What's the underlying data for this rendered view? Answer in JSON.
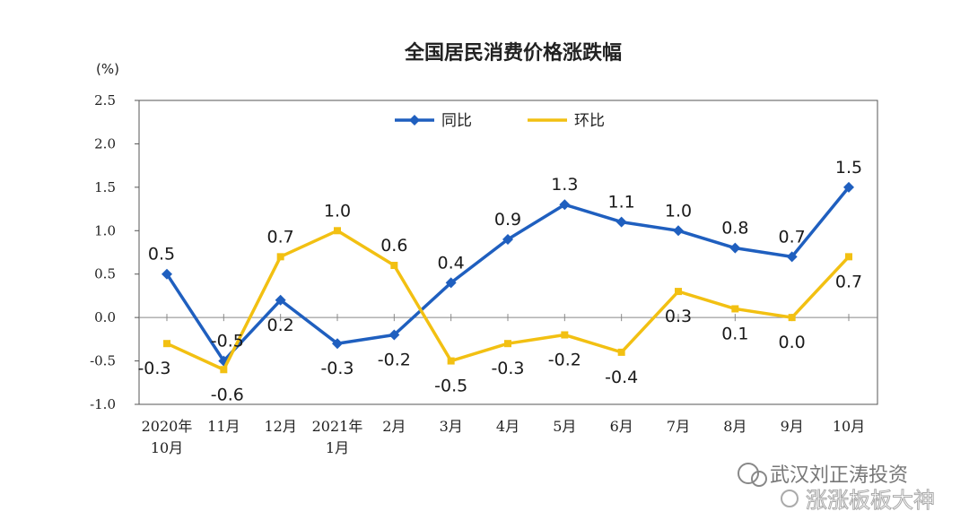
{
  "chart_data": {
    "type": "line",
    "title": "全国居民消费价格涨跌幅",
    "unit_label": "(%)",
    "categories": [
      [
        "2020年",
        "10月"
      ],
      [
        "11月"
      ],
      [
        "12月"
      ],
      [
        "2021年",
        "1月"
      ],
      [
        "2月"
      ],
      [
        "3月"
      ],
      [
        "4月"
      ],
      [
        "5月"
      ],
      [
        "6月"
      ],
      [
        "7月"
      ],
      [
        "8月"
      ],
      [
        "9月"
      ],
      [
        "10月"
      ]
    ],
    "ylim": [
      -1.0,
      2.5
    ],
    "yticks": [
      "-1.0",
      "-0.5",
      "0.0",
      "0.5",
      "1.0",
      "1.5",
      "2.0",
      "2.5"
    ],
    "grid": false,
    "legend_position": "top-center",
    "series": [
      {
        "name": "同比",
        "color": "#1f5fbf",
        "marker": "diamond",
        "values": [
          0.5,
          -0.5,
          0.2,
          -0.3,
          -0.2,
          0.4,
          0.9,
          1.3,
          1.1,
          1.0,
          0.8,
          0.7,
          1.5
        ],
        "labels": [
          "0.5",
          "-0.5",
          "0.2",
          "-0.3",
          "-0.2",
          "0.4",
          "0.9",
          "1.3",
          "1.1",
          "1.0",
          "0.8",
          "0.7",
          "1.5"
        ]
      },
      {
        "name": "环比",
        "color": "#f2c012",
        "marker": "square",
        "values": [
          -0.3,
          -0.6,
          0.7,
          1.0,
          0.6,
          -0.5,
          -0.3,
          -0.2,
          -0.4,
          0.3,
          0.1,
          0.0,
          0.7
        ],
        "labels": [
          "-0.3",
          "-0.6",
          "0.7",
          "1.0",
          "0.6",
          "-0.5",
          "-0.3",
          "-0.2",
          "-0.4",
          "0.3",
          "0.1",
          "0.0",
          "0.7"
        ]
      }
    ]
  },
  "watermark": {
    "line1": "武汉刘正涛投资",
    "line2": "涨涨板板大神"
  }
}
